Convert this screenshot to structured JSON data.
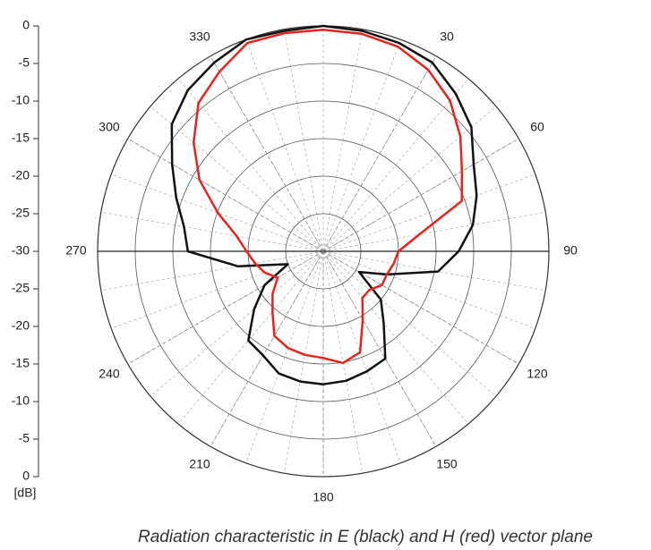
{
  "chart_data": {
    "type": "polar",
    "caption": "Radiation characteristic in E (black) and H (red) vector plane",
    "r_unit": "[dB]",
    "rlim": [
      -30,
      0
    ],
    "rticks": [
      -30,
      -25,
      -20,
      -15,
      -10,
      -5,
      0
    ],
    "thetaticks": [
      30,
      60,
      90,
      120,
      150,
      180,
      210,
      240,
      270,
      300,
      330
    ],
    "theta": [
      0,
      10,
      20,
      30,
      40,
      50,
      60,
      70,
      80,
      90,
      100,
      110,
      120,
      130,
      140,
      150,
      160,
      170,
      180,
      190,
      200,
      210,
      220,
      230,
      240,
      250,
      260,
      270,
      280,
      290,
      300,
      310,
      320,
      330,
      340,
      350
    ],
    "series": [
      {
        "color": "#111111",
        "values": [
          0,
          -0.2,
          -0.5,
          -1,
          -2.6,
          -4.3,
          -6.9,
          -8.3,
          -9.8,
          -12,
          -14.5,
          -21,
          -24.5,
          -20,
          -17.5,
          -13.5,
          -13,
          -12.5,
          -12.3,
          -12.4,
          -12.7,
          -14,
          -14.5,
          -18,
          -21,
          -25,
          -18.5,
          -12,
          -11.2,
          -9.2,
          -6.8,
          -3.7,
          -2,
          -1,
          0,
          -0.2
        ]
      },
      {
        "color": "#e8231f",
        "values": [
          -0.5,
          -0.6,
          -1,
          -2.1,
          -3.8,
          -6.2,
          -8.7,
          -10.4,
          -17,
          -20,
          -20.5,
          -21,
          -21,
          -22,
          -21.9,
          -19.5,
          -15.7,
          -14.9,
          -15.8,
          -16,
          -16.3,
          -17,
          -19.5,
          -21.2,
          -23,
          -21.7,
          -20.8,
          -19.8,
          -18.3,
          -15.1,
          -11,
          -7.5,
          -4.2,
          -2.4,
          -0.5,
          -0.5
        ]
      }
    ]
  }
}
